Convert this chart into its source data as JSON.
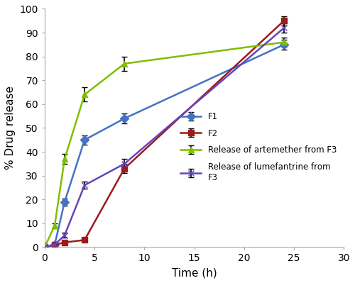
{
  "title": "",
  "xlabel": "Time (h)",
  "ylabel": "% Drug release",
  "xlim": [
    0,
    30
  ],
  "ylim": [
    0,
    100
  ],
  "xticks": [
    0,
    5,
    10,
    15,
    20,
    25,
    30
  ],
  "yticks": [
    0,
    10,
    20,
    30,
    40,
    50,
    60,
    70,
    80,
    90,
    100
  ],
  "F1": {
    "x": [
      0,
      1,
      2,
      4,
      8,
      24
    ],
    "y": [
      0,
      1,
      19,
      45,
      54,
      85
    ],
    "yerr": [
      0.0,
      0.4,
      1.5,
      2.0,
      2.0,
      2.0
    ],
    "color": "#4472C4",
    "marker": "D",
    "label": "F1"
  },
  "F2": {
    "x": [
      0,
      1,
      2,
      4,
      8,
      24
    ],
    "y": [
      0,
      1,
      2,
      3,
      33,
      95
    ],
    "yerr": [
      0.0,
      0.4,
      0.4,
      0.4,
      2.0,
      2.0
    ],
    "color": "#9B1B1B",
    "marker": "s",
    "label": "F2"
  },
  "F3_artemether": {
    "x": [
      0,
      1,
      2,
      4,
      8,
      24
    ],
    "y": [
      0,
      9,
      37,
      64,
      77,
      86
    ],
    "yerr": [
      0.0,
      1.0,
      2.0,
      3.0,
      3.0,
      2.0
    ],
    "color": "#7FBF00",
    "marker": "^",
    "label": "Release of artemether from F3"
  },
  "F3_lumefantrine": {
    "x": [
      0,
      1,
      2,
      4,
      8,
      24
    ],
    "y": [
      0,
      1,
      5,
      26,
      35,
      92
    ],
    "yerr": [
      0.0,
      0.4,
      1.0,
      1.5,
      2.0,
      2.0
    ],
    "color": "#6644BB",
    "marker": "x",
    "label": "Release of lumefantrine from\nF3"
  },
  "bg_color": "#ffffff",
  "spine_color": "#AAAAAA",
  "series_order": [
    "F1",
    "F2",
    "F3_artemether",
    "F3_lumefantrine"
  ]
}
